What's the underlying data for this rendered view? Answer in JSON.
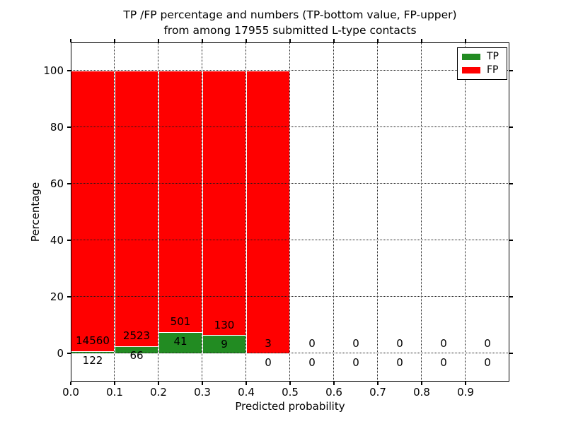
{
  "figure": {
    "title_lines": [
      "TP /FP percentage and numbers (TP-bottom value, FP-upper)",
      "from among 17955 submitted L-type contacts"
    ],
    "xlabel": "Predicted probability",
    "ylabel": "Percentage"
  },
  "chart_data": {
    "type": "bar",
    "stacked": true,
    "normalized": "each non-empty bin stacked to 100%",
    "title": "TP /FP percentage and numbers (TP-bottom value, FP-upper) from among 17955 submitted L-type contacts",
    "xlabel": "Predicted probability",
    "ylabel": "Percentage",
    "xlim": [
      0.0,
      1.0
    ],
    "ylim": [
      -10,
      110
    ],
    "x_tick_labels": [
      "0.0",
      "0.1",
      "0.2",
      "0.3",
      "0.4",
      "0.5",
      "0.6",
      "0.7",
      "0.8",
      "0.9"
    ],
    "y_tick_values": [
      0,
      20,
      40,
      60,
      80,
      100
    ],
    "grid_style": "dotted",
    "bin_edges": [
      0.0,
      0.1,
      0.2,
      0.3,
      0.4,
      0.5,
      0.6,
      0.7,
      0.8,
      0.9,
      1.0
    ],
    "series": [
      {
        "name": "TP",
        "color": "#228b22",
        "counts": [
          122,
          66,
          41,
          9,
          0,
          0,
          0,
          0,
          0,
          0
        ]
      },
      {
        "name": "FP",
        "color": "#ff0000",
        "counts": [
          14560,
          2523,
          501,
          130,
          3,
          0,
          0,
          0,
          0,
          0
        ]
      }
    ],
    "tp_percent_per_bin": [
      0.83,
      2.55,
      7.56,
      6.47,
      0.0,
      0,
      0,
      0,
      0,
      0
    ],
    "fp_percent_per_bin": [
      99.17,
      97.45,
      92.44,
      93.53,
      100.0,
      0,
      0,
      0,
      0,
      0
    ],
    "total_submitted": 17955,
    "legend": {
      "position": "upper right",
      "entries": [
        {
          "label": "TP",
          "color": "#228b22"
        },
        {
          "label": "FP",
          "color": "#ff0000"
        }
      ]
    }
  },
  "colors": {
    "background": "#ffffff",
    "axes_frame": "#000000",
    "grid": "#1a1a1a",
    "text": "#000000",
    "bar_edge": "#ffffff",
    "tp_green": "#228b22",
    "fp_red": "#ff0000"
  }
}
